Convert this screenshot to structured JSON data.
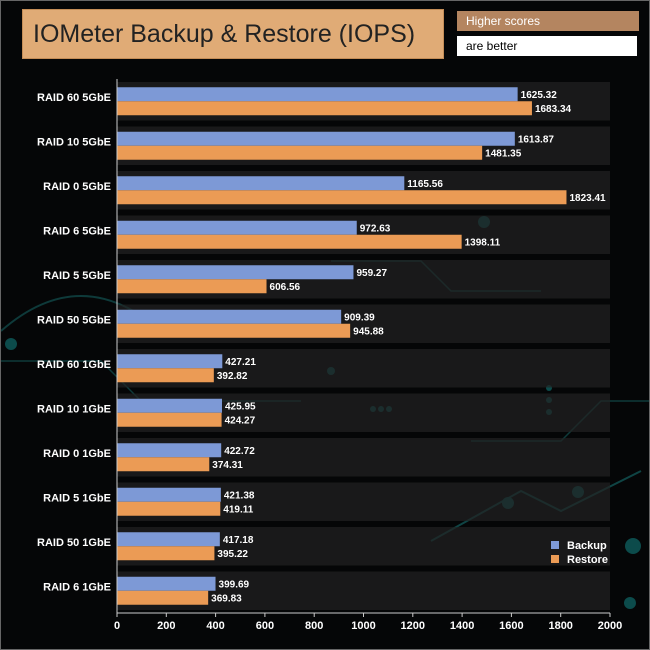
{
  "header": {
    "title": "IOMeter Backup & Restore (IOPS)",
    "note_line1": "Higher scores",
    "note_line2": "are better"
  },
  "chart_data": {
    "type": "bar",
    "orientation": "horizontal",
    "categories": [
      "RAID 60 5GbE",
      "RAID 10 5GbE",
      "RAID 0 5GbE",
      "RAID 6 5GbE",
      "RAID 5 5GbE",
      "RAID 50 5GbE",
      "RAID 60 1GbE",
      "RAID 10 1GbE",
      "RAID 0 1GbE",
      "RAID 5 1GbE",
      "RAID 50 1GbE",
      "RAID 6 1GbE"
    ],
    "series": [
      {
        "name": "Backup",
        "color": "#7d99d6",
        "values": [
          1625.32,
          1613.87,
          1165.56,
          972.63,
          959.27,
          909.39,
          427.21,
          425.95,
          422.72,
          421.38,
          417.18,
          399.69
        ]
      },
      {
        "name": "Restore",
        "color": "#eb9b55",
        "values": [
          1683.34,
          1481.35,
          1823.41,
          1398.11,
          606.56,
          945.88,
          392.82,
          424.27,
          374.31,
          419.11,
          395.22,
          369.83
        ]
      }
    ],
    "xlim": [
      0,
      2000
    ],
    "xticks": [
      0,
      200,
      400,
      600,
      800,
      1000,
      1200,
      1400,
      1600,
      1800,
      2000
    ],
    "legend_position": "bottom-right",
    "grid": false
  }
}
